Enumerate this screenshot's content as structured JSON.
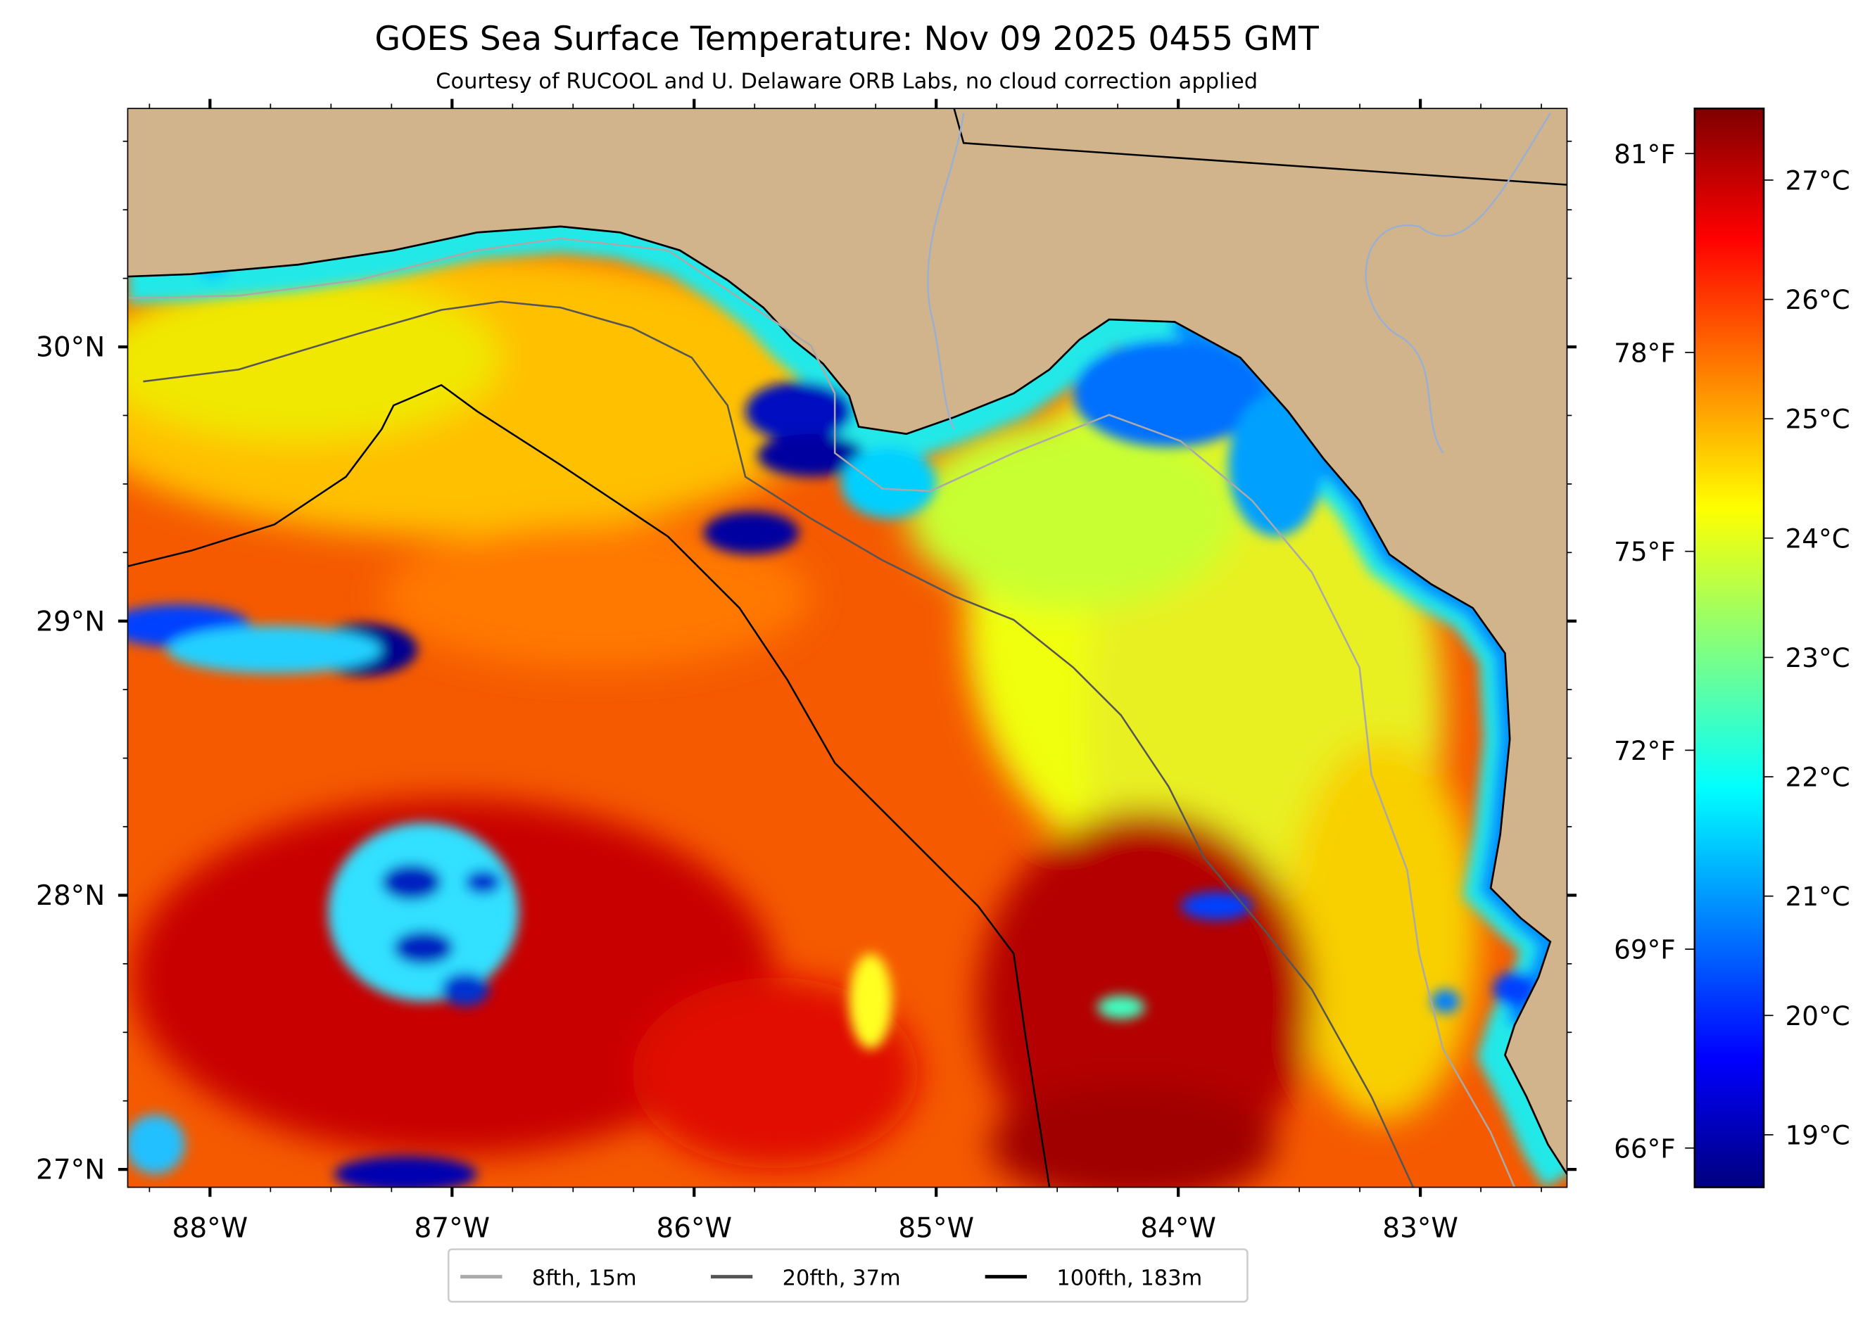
{
  "title": "GOES Sea Surface Temperature: Nov 09 2025 0455 GMT",
  "subtitle": "Courtesy of RUCOOL and U. Delaware ORB Labs, no cloud correction applied",
  "map": {
    "lon_range": [
      -88.34,
      -82.39
    ],
    "lat_range": [
      26.93,
      30.87
    ],
    "lon_ticks": [
      {
        "value": -88,
        "label": "88°W"
      },
      {
        "value": -87,
        "label": "87°W"
      },
      {
        "value": -86,
        "label": "86°W"
      },
      {
        "value": -85,
        "label": "85°W"
      },
      {
        "value": -84,
        "label": "84°W"
      },
      {
        "value": -83,
        "label": "83°W"
      }
    ],
    "lat_ticks": [
      {
        "value": 30,
        "label": "30°N"
      },
      {
        "value": 29,
        "label": "29°N"
      },
      {
        "value": 28,
        "label": "28°N"
      },
      {
        "value": 27,
        "label": "27°N"
      }
    ],
    "minor_tick_step_deg": 0.25,
    "land_color": "#d2b48c",
    "colormap": "jet"
  },
  "colorbar": {
    "vmin_c": 18.56,
    "vmax_c": 27.6,
    "celsius_ticks": [
      {
        "value": 27,
        "label": "27°C"
      },
      {
        "value": 26,
        "label": "26°C"
      },
      {
        "value": 25,
        "label": "25°C"
      },
      {
        "value": 24,
        "label": "24°C"
      },
      {
        "value": 23,
        "label": "23°C"
      },
      {
        "value": 22,
        "label": "22°C"
      },
      {
        "value": 21,
        "label": "21°C"
      },
      {
        "value": 20,
        "label": "20°C"
      },
      {
        "value": 19,
        "label": "19°C"
      }
    ],
    "fahrenheit_ticks": [
      {
        "value": 81,
        "label": "81°F"
      },
      {
        "value": 78,
        "label": "78°F"
      },
      {
        "value": 75,
        "label": "75°F"
      },
      {
        "value": 72,
        "label": "72°F"
      },
      {
        "value": 69,
        "label": "69°F"
      },
      {
        "value": 66,
        "label": "66°F"
      }
    ]
  },
  "legend": {
    "position": "bottom-center",
    "items": [
      {
        "label": "8fth, 15m",
        "color": "#a9a9a9"
      },
      {
        "label": "20fth, 37m",
        "color": "#555555"
      },
      {
        "label": "100fth, 183m",
        "color": "#000000"
      }
    ]
  }
}
